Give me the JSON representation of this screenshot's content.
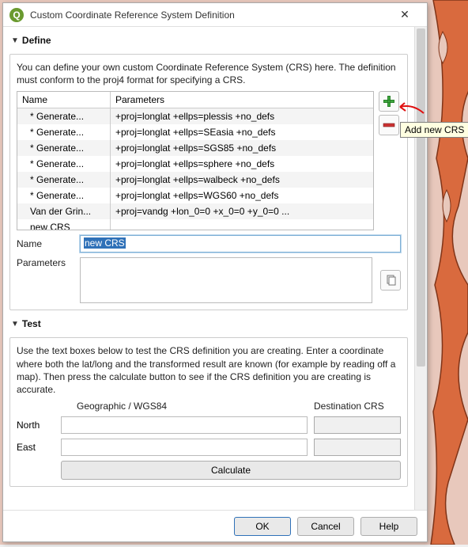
{
  "window": {
    "title": "Custom Coordinate Reference System Definition",
    "close": "✕"
  },
  "define": {
    "header": "Define",
    "info": "You can define your own custom Coordinate Reference System (CRS) here. The definition must conform to the proj4 format for specifying a CRS.",
    "columns": {
      "name": "Name",
      "params": "Parameters"
    },
    "rows": [
      {
        "name": "* Generate...",
        "params": "+proj=longlat +ellps=plessis +no_defs"
      },
      {
        "name": "* Generate...",
        "params": "+proj=longlat +ellps=SEasia +no_defs"
      },
      {
        "name": "* Generate...",
        "params": "+proj=longlat +ellps=SGS85 +no_defs"
      },
      {
        "name": "* Generate...",
        "params": "+proj=longlat +ellps=sphere +no_defs"
      },
      {
        "name": "* Generate...",
        "params": "+proj=longlat +ellps=walbeck +no_defs"
      },
      {
        "name": "* Generate...",
        "params": "+proj=longlat +ellps=WGS60 +no_defs"
      },
      {
        "name": "Van der Grin...",
        "params": "+proj=vandg +lon_0=0 +x_0=0 +y_0=0 ..."
      },
      {
        "name": "new CRS",
        "params": ""
      }
    ],
    "name_label": "Name",
    "name_value": "new CRS",
    "params_label": "Parameters",
    "tooltip": "Add new CRS"
  },
  "test": {
    "header": "Test",
    "info": "Use the text boxes below to test the CRS definition you are creating. Enter a coordinate where both the lat/long and the transformed result are known (for example by reading off a map). Then press the calculate button to see if the CRS definition you are creating is accurate.",
    "geo_header": "Geographic / WGS84",
    "dest_header": "Destination CRS",
    "north": "North",
    "east": "East",
    "calculate": "Calculate"
  },
  "buttons": {
    "ok": "OK",
    "cancel": "Cancel",
    "help": "Help"
  },
  "colors": {
    "map_land": "#d96a3e",
    "map_outline": "#803418",
    "map_bg": "#e8c8bc",
    "accent": "#2f71b8",
    "add_green": "#3fa83f",
    "remove_red": "#cc3333"
  }
}
